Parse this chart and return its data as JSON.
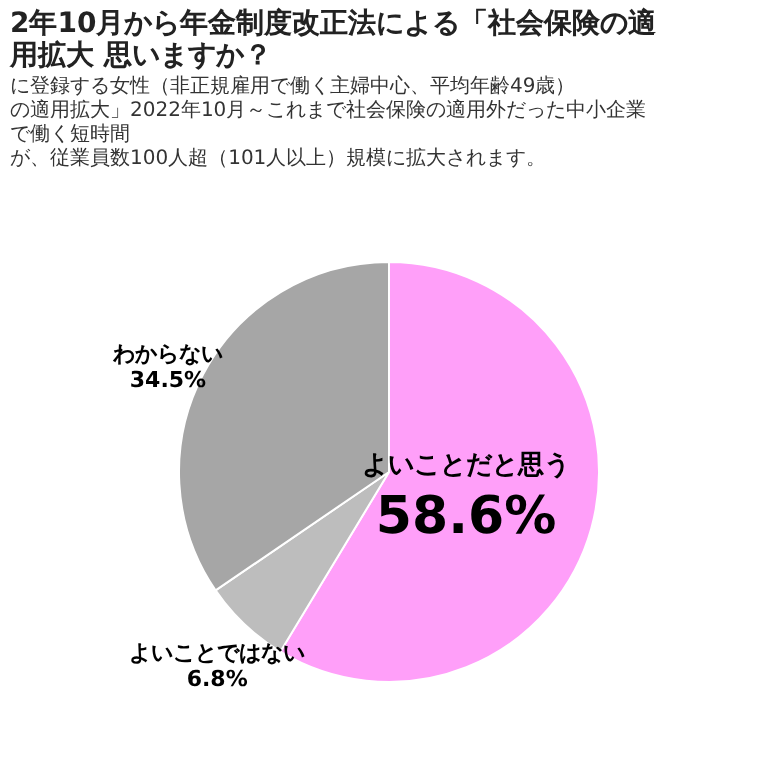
{
  "chart_data": {
    "type": "pie",
    "title": "2年10月から年金制度改正法による「社会保険の適用拡大 思いますか？",
    "subtitle": "に登録する女性（非正規雇用で働く主婦中心、平均年齢49歳）",
    "annotations": [
      "の適用拡大」2022年10月～これまで社会保険の適用外だった中小企業で働く短時間",
      "が、従業員数100人超（101人以上）規模に拡大されます。"
    ],
    "categories": [
      "よいことだと思う",
      "よいことではない",
      "わからない"
    ],
    "values": [
      58.6,
      6.8,
      34.5
    ],
    "value_labels": [
      "58.6%",
      "6.8%",
      "34.5%"
    ],
    "colors": [
      "#ff9ff9",
      "#bdbdbd",
      "#a6a6a6"
    ],
    "legend": false
  }
}
